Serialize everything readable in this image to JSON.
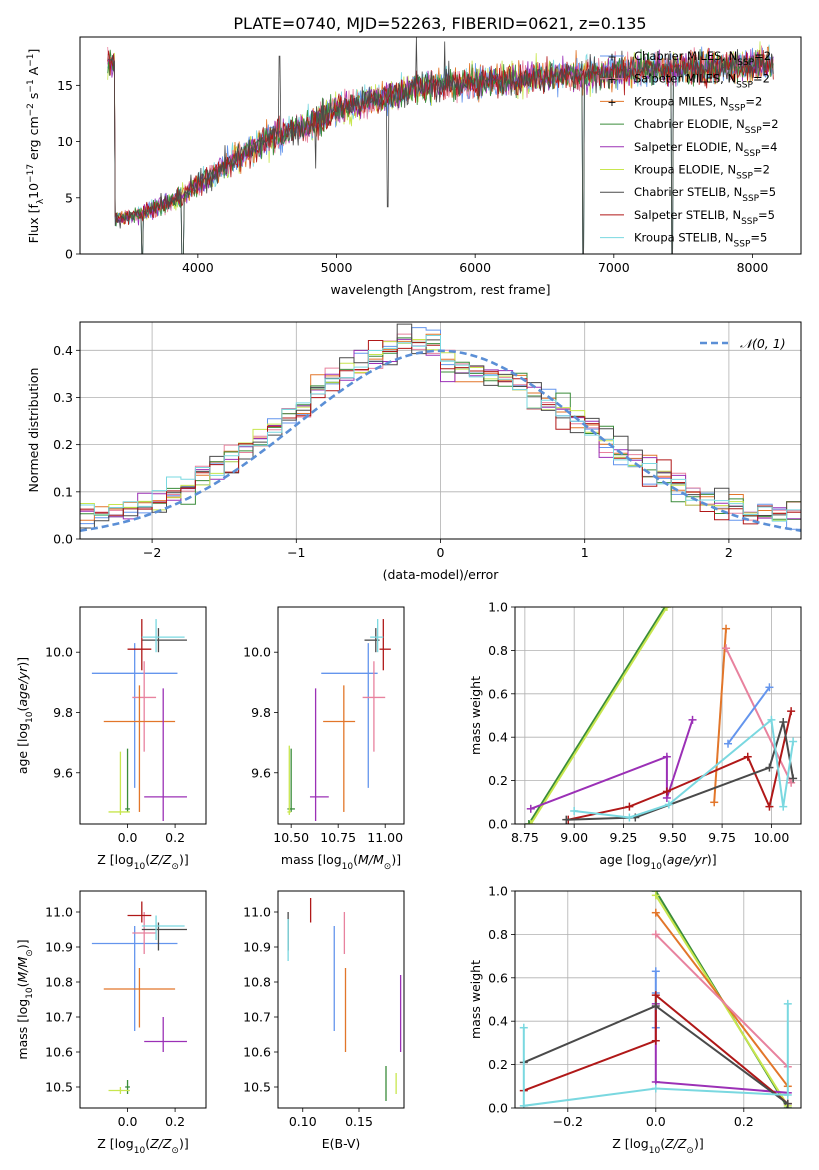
{
  "figure": {
    "title": "PLATE=0740, MJD=52263, FIBERID=0621, z=0.135"
  },
  "models": [
    {
      "name": "Chabrier MILES",
      "nssp": "2",
      "color": "#6495ED"
    },
    {
      "name": "Salpeter MILES",
      "nssp": "2",
      "color": "#E8829E"
    },
    {
      "name": "Kroupa MILES",
      "nssp": "2",
      "color": "#E2762A"
    },
    {
      "name": "Chabrier ELODIE",
      "nssp": "2",
      "color": "#3A8C3A"
    },
    {
      "name": "Salpeter ELODIE",
      "nssp": "4",
      "color": "#9B30B6"
    },
    {
      "name": "Kroupa ELODIE",
      "nssp": "2",
      "color": "#C8E64E"
    },
    {
      "name": "Chabrier STELIB",
      "nssp": "5",
      "color": "#4A4A4A"
    },
    {
      "name": "Salpeter STELIB",
      "nssp": "5",
      "color": "#B01818"
    },
    {
      "name": "Kroupa STELIB",
      "nssp": "5",
      "color": "#7AD8E0"
    }
  ],
  "chart_data": [
    {
      "id": "spectrum",
      "type": "line",
      "xlabel": "wavelength [Angstrom, rest frame]",
      "ylabel": "Flux [f_λ10^-17 erg cm^-2 s^-1 A^-1]",
      "xlim": [
        3150,
        8350
      ],
      "ylim": [
        0,
        19.3
      ],
      "xticks": [
        4000,
        5000,
        6000,
        7000,
        8000
      ],
      "yticks": [
        0,
        5,
        10,
        15
      ],
      "continuum_points": [
        [
          3400,
          3.1
        ],
        [
          3600,
          3.6
        ],
        [
          3800,
          4.6
        ],
        [
          4000,
          6.2
        ],
        [
          4200,
          7.9
        ],
        [
          4500,
          10.2
        ],
        [
          4800,
          11.5
        ],
        [
          5000,
          12.9
        ],
        [
          5300,
          13.8
        ],
        [
          5600,
          14.9
        ],
        [
          5900,
          15.2
        ],
        [
          6200,
          15.4
        ],
        [
          6500,
          15.8
        ],
        [
          6800,
          16.0
        ],
        [
          7100,
          16.3
        ],
        [
          7400,
          16.5
        ],
        [
          7700,
          16.6
        ],
        [
          8000,
          16.8
        ],
        [
          8150,
          16.9
        ]
      ],
      "data_range": [
        3350,
        8150
      ],
      "dips": [
        [
          3600,
          0
        ],
        [
          3890,
          0
        ],
        [
          6780,
          0
        ],
        [
          7420,
          0
        ]
      ],
      "spikes": [
        [
          5575,
          19.3
        ],
        [
          5780,
          18.9
        ],
        [
          4590,
          17.6
        ],
        [
          5370,
          4.2
        ],
        [
          4850,
          7.6
        ]
      ],
      "legend": "right inside",
      "grid": false
    },
    {
      "id": "residuals",
      "type": "step",
      "xlabel": "(data-model)/error",
      "ylabel": "Normed distribution",
      "xlim": [
        -2.5,
        2.5
      ],
      "ylim": [
        0,
        0.46
      ],
      "xticks": [
        -2,
        -1,
        0,
        1,
        2
      ],
      "yticks": [
        0,
        0.1,
        0.2,
        0.3,
        0.4
      ],
      "reference_label": "𝒩(0, 1)",
      "reference_color": "#5B8FD6",
      "grid": true,
      "legend": "top-right"
    },
    {
      "id": "age_vs_Z",
      "type": "errorbar",
      "xlabel": "Z [log10(Z/Z_⊙)]",
      "ylabel": "age [log10(age/yr)]",
      "xlim": [
        -0.2,
        0.33
      ],
      "ylim": [
        9.43,
        10.15
      ],
      "xticks": [
        0.0,
        0.2
      ],
      "yticks": [
        9.6,
        9.8,
        10.0
      ],
      "points": [
        {
          "x": 0.03,
          "xerr": [
            0.18,
            0.18
          ],
          "y": 9.93,
          "yerr": [
            0.38,
            0.1
          ],
          "color": "#6495ED"
        },
        {
          "x": 0.07,
          "xerr": [
            0.05,
            0.05
          ],
          "y": 9.85,
          "yerr": [
            0.18,
            0.12
          ],
          "color": "#E8829E"
        },
        {
          "x": 0.05,
          "xerr": [
            0.15,
            0.15
          ],
          "y": 9.77,
          "yerr": [
            0.3,
            0.12
          ],
          "color": "#E2762A"
        },
        {
          "x": 0.0,
          "xerr": [
            0.01,
            0.01
          ],
          "y": 9.48,
          "yerr": [
            0.01,
            0.2
          ],
          "color": "#3A8C3A"
        },
        {
          "x": 0.15,
          "xerr": [
            0.08,
            0.1
          ],
          "y": 9.52,
          "yerr": [
            0.08,
            0.36
          ],
          "color": "#9B30B6"
        },
        {
          "x": -0.03,
          "xerr": [
            0.05,
            0.04
          ],
          "y": 9.47,
          "yerr": [
            0.01,
            0.2
          ],
          "color": "#C8E64E"
        },
        {
          "x": 0.13,
          "xerr": [
            0.07,
            0.12
          ],
          "y": 10.04,
          "yerr": [
            0.04,
            0.04
          ],
          "color": "#4A4A4A"
        },
        {
          "x": 0.06,
          "xerr": [
            0.06,
            0.04
          ],
          "y": 10.01,
          "yerr": [
            0.07,
            0.1
          ],
          "color": "#B01818"
        },
        {
          "x": 0.12,
          "xerr": [
            0.06,
            0.12
          ],
          "y": 10.05,
          "yerr": [
            0.05,
            0.06
          ],
          "color": "#7AD8E0"
        }
      ]
    },
    {
      "id": "age_vs_mass",
      "type": "errorbar",
      "xlabel": "mass [log10(M/M_⊙)]",
      "ylabel": "",
      "xlim": [
        10.43,
        11.1
      ],
      "ylim": [
        9.43,
        10.15
      ],
      "xticks": [
        10.5,
        10.75,
        11.0
      ],
      "yticks": [
        9.6,
        9.8,
        10.0
      ],
      "points": [
        {
          "x": 10.91,
          "xerr": [
            0.25,
            0.05
          ],
          "y": 9.93,
          "yerr": [
            0.38,
            0.1
          ],
          "color": "#6495ED"
        },
        {
          "x": 10.94,
          "xerr": [
            0.06,
            0.06
          ],
          "y": 9.85,
          "yerr": [
            0.18,
            0.12
          ],
          "color": "#E8829E"
        },
        {
          "x": 10.78,
          "xerr": [
            0.11,
            0.06
          ],
          "y": 9.77,
          "yerr": [
            0.3,
            0.12
          ],
          "color": "#E2762A"
        },
        {
          "x": 10.5,
          "xerr": [
            0.02,
            0.02
          ],
          "y": 9.48,
          "yerr": [
            0.01,
            0.2
          ],
          "color": "#3A8C3A"
        },
        {
          "x": 10.63,
          "xerr": [
            0.03,
            0.07
          ],
          "y": 9.52,
          "yerr": [
            0.08,
            0.36
          ],
          "color": "#9B30B6"
        },
        {
          "x": 10.49,
          "xerr": [
            0.01,
            0.01
          ],
          "y": 9.47,
          "yerr": [
            0.01,
            0.22
          ],
          "color": "#C8E64E"
        },
        {
          "x": 10.95,
          "xerr": [
            0.06,
            0.02
          ],
          "y": 10.04,
          "yerr": [
            0.04,
            0.04
          ],
          "color": "#4A4A4A"
        },
        {
          "x": 10.99,
          "xerr": [
            0.02,
            0.04
          ],
          "y": 10.01,
          "yerr": [
            0.07,
            0.1
          ],
          "color": "#B01818"
        },
        {
          "x": 10.96,
          "xerr": [
            0.04,
            0.03
          ],
          "y": 10.05,
          "yerr": [
            0.05,
            0.06
          ],
          "color": "#7AD8E0"
        }
      ]
    },
    {
      "id": "weight_vs_age",
      "type": "line",
      "xlabel": "age [log10(age/yr)]",
      "ylabel": "mass weight",
      "xlim": [
        8.7,
        10.15
      ],
      "ylim": [
        0,
        1.0
      ],
      "xticks": [
        8.75,
        9.0,
        9.25,
        9.5,
        9.75,
        10.0
      ],
      "yticks": [
        0.0,
        0.2,
        0.4,
        0.6,
        0.8,
        1.0
      ],
      "grid": true,
      "series": [
        {
          "color": "#3A8C3A",
          "x": [
            8.77,
            9.46
          ],
          "y": [
            0.0,
            1.0
          ]
        },
        {
          "color": "#C8E64E",
          "x": [
            8.78,
            9.47
          ],
          "y": [
            0.0,
            1.0
          ]
        },
        {
          "color": "#E2762A",
          "x": [
            9.71,
            9.77
          ],
          "y": [
            0.1,
            0.9
          ]
        },
        {
          "color": "#E8829E",
          "x": [
            9.77,
            10.1
          ],
          "y": [
            0.81,
            0.19
          ]
        },
        {
          "color": "#6495ED",
          "x": [
            9.78,
            9.99
          ],
          "y": [
            0.37,
            0.63
          ]
        },
        {
          "color": "#9B30B6",
          "x": [
            8.78,
            9.47,
            9.47,
            9.6
          ],
          "y": [
            0.07,
            0.31,
            0.12,
            0.48
          ]
        },
        {
          "color": "#B01818",
          "x": [
            8.97,
            9.28,
            9.47,
            9.88,
            9.99,
            10.1
          ],
          "y": [
            0.02,
            0.08,
            0.15,
            0.31,
            0.08,
            0.52
          ]
        },
        {
          "color": "#4A4A4A",
          "x": [
            8.96,
            9.31,
            9.99,
            10.06,
            10.11
          ],
          "y": [
            0.02,
            0.03,
            0.26,
            0.47,
            0.21
          ]
        },
        {
          "color": "#7AD8E0",
          "x": [
            9.0,
            9.28,
            9.48,
            10.0,
            10.06,
            10.11
          ],
          "y": [
            0.06,
            0.03,
            0.09,
            0.48,
            0.08,
            0.38
          ]
        }
      ]
    },
    {
      "id": "mass_vs_Z",
      "type": "errorbar",
      "xlabel": "Z [log10(Z/Z_⊙)]",
      "ylabel": "mass [log10(M/M_⊙)]",
      "xlim": [
        -0.2,
        0.33
      ],
      "ylim": [
        10.44,
        11.06
      ],
      "xticks": [
        0.0,
        0.2
      ],
      "yticks": [
        10.5,
        10.6,
        10.7,
        10.8,
        10.9,
        11.0
      ],
      "points": [
        {
          "x": 0.03,
          "xerr": [
            0.18,
            0.18
          ],
          "y": 10.91,
          "yerr": [
            0.25,
            0.05
          ],
          "color": "#6495ED"
        },
        {
          "x": 0.07,
          "xerr": [
            0.05,
            0.05
          ],
          "y": 10.94,
          "yerr": [
            0.06,
            0.06
          ],
          "color": "#E8829E"
        },
        {
          "x": 0.05,
          "xerr": [
            0.15,
            0.15
          ],
          "y": 10.78,
          "yerr": [
            0.11,
            0.06
          ],
          "color": "#E2762A"
        },
        {
          "x": 0.0,
          "xerr": [
            0.01,
            0.01
          ],
          "y": 10.5,
          "yerr": [
            0.02,
            0.02
          ],
          "color": "#3A8C3A"
        },
        {
          "x": 0.15,
          "xerr": [
            0.08,
            0.1
          ],
          "y": 10.63,
          "yerr": [
            0.03,
            0.07
          ],
          "color": "#9B30B6"
        },
        {
          "x": -0.03,
          "xerr": [
            0.05,
            0.04
          ],
          "y": 10.49,
          "yerr": [
            0.01,
            0.01
          ],
          "color": "#C8E64E"
        },
        {
          "x": 0.13,
          "xerr": [
            0.07,
            0.12
          ],
          "y": 10.95,
          "yerr": [
            0.06,
            0.02
          ],
          "color": "#4A4A4A"
        },
        {
          "x": 0.06,
          "xerr": [
            0.06,
            0.04
          ],
          "y": 10.99,
          "yerr": [
            0.02,
            0.04
          ],
          "color": "#B01818"
        },
        {
          "x": 0.12,
          "xerr": [
            0.06,
            0.12
          ],
          "y": 10.96,
          "yerr": [
            0.04,
            0.03
          ],
          "color": "#7AD8E0"
        }
      ]
    },
    {
      "id": "mass_vs_ebv",
      "type": "errorbar",
      "xlabel": "E(B-V)",
      "ylabel": "",
      "xlim": [
        0.078,
        0.19
      ],
      "ylim": [
        10.44,
        11.06
      ],
      "xticks": [
        0.1,
        0.15
      ],
      "yticks": [
        10.5,
        10.6,
        10.7,
        10.8,
        10.9,
        11.0
      ],
      "points": [
        {
          "x": 0.128,
          "xerr": [
            0,
            0
          ],
          "y": 10.91,
          "yerr": [
            0.25,
            0.05
          ],
          "color": "#6495ED"
        },
        {
          "x": 0.137,
          "xerr": [
            0,
            0
          ],
          "y": 10.94,
          "yerr": [
            0.06,
            0.06
          ],
          "color": "#E8829E"
        },
        {
          "x": 0.138,
          "xerr": [
            0,
            0
          ],
          "y": 10.78,
          "yerr": [
            0.18,
            0.06
          ],
          "color": "#E2762A"
        },
        {
          "x": 0.174,
          "xerr": [
            0,
            0
          ],
          "y": 10.5,
          "yerr": [
            0.04,
            0.06
          ],
          "color": "#3A8C3A"
        },
        {
          "x": 0.187,
          "xerr": [
            0,
            0
          ],
          "y": 10.63,
          "yerr": [
            0.03,
            0.19
          ],
          "color": "#9B30B6"
        },
        {
          "x": 0.183,
          "xerr": [
            0,
            0
          ],
          "y": 10.5,
          "yerr": [
            0.02,
            0.04
          ],
          "color": "#C8E64E"
        },
        {
          "x": 0.087,
          "xerr": [
            0,
            0
          ],
          "y": 10.95,
          "yerr": [
            0.06,
            0.05
          ],
          "color": "#4A4A4A"
        },
        {
          "x": 0.107,
          "xerr": [
            0,
            0
          ],
          "y": 10.99,
          "yerr": [
            0.02,
            0.05
          ],
          "color": "#B01818"
        },
        {
          "x": 0.087,
          "xerr": [
            0,
            0
          ],
          "y": 10.94,
          "yerr": [
            0.08,
            0.04
          ],
          "color": "#7AD8E0"
        }
      ]
    },
    {
      "id": "weight_vs_Z",
      "type": "line",
      "xlabel": "Z [log10(Z/Z_⊙)]",
      "ylabel": "mass weight",
      "xlim": [
        -0.32,
        0.33
      ],
      "ylim": [
        0,
        1.0
      ],
      "xticks": [
        -0.2,
        0.0,
        0.2
      ],
      "yticks": [
        0.0,
        0.2,
        0.4,
        0.6,
        0.8,
        1.0
      ],
      "grid": true,
      "series": [
        {
          "color": "#3A8C3A",
          "x": [
            0.0,
            0.3
          ],
          "y": [
            1.0,
            0.0
          ]
        },
        {
          "color": "#C8E64E",
          "x": [
            0.0,
            0.3
          ],
          "y": [
            0.98,
            0.01
          ]
        },
        {
          "color": "#E2762A",
          "x": [
            0.0,
            0.3
          ],
          "y": [
            0.9,
            0.1
          ]
        },
        {
          "color": "#E8829E",
          "x": [
            0.0,
            0.3
          ],
          "y": [
            0.8,
            0.19
          ]
        },
        {
          "color": "#6495ED",
          "x": [
            0.0,
            0.0,
            0.0
          ],
          "y": [
            0.63,
            0.53,
            0.37
          ]
        },
        {
          "color": "#9B30B6",
          "x": [
            0.0,
            0.0,
            0.3
          ],
          "y": [
            0.48,
            0.12,
            0.07
          ]
        },
        {
          "color": "#B01818",
          "x": [
            -0.3,
            0.0,
            0.0,
            0.3
          ],
          "y": [
            0.08,
            0.31,
            0.52,
            0.02
          ]
        },
        {
          "color": "#4A4A4A",
          "x": [
            -0.3,
            0.0,
            0.3
          ],
          "y": [
            0.21,
            0.47,
            0.02
          ]
        },
        {
          "color": "#7AD8E0",
          "x": [
            -0.3,
            -0.3,
            0.0,
            0.3,
            0.3
          ],
          "y": [
            0.37,
            0.01,
            0.09,
            0.06,
            0.48
          ]
        }
      ]
    }
  ]
}
